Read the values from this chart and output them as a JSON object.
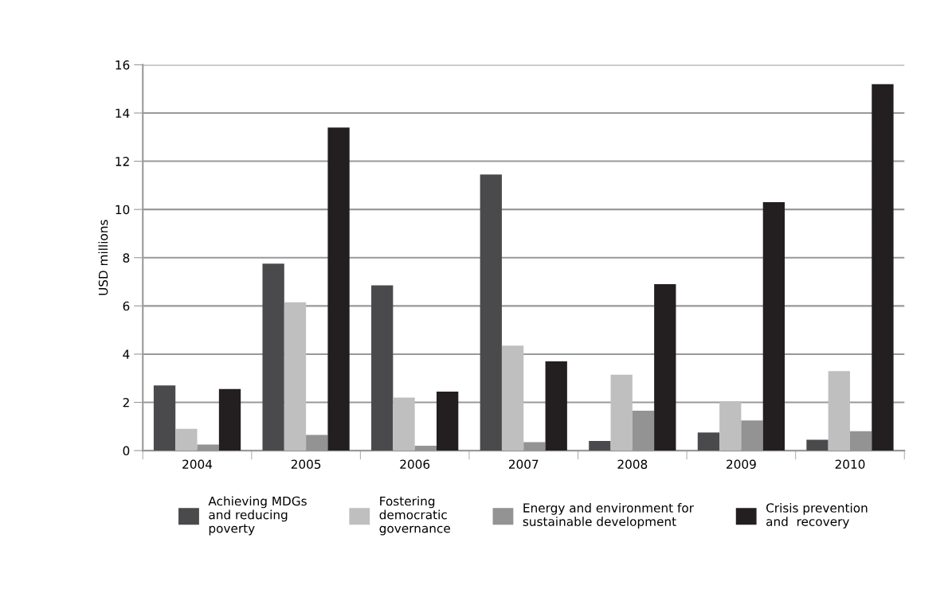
{
  "chart_data": {
    "type": "bar",
    "ylabel": "USD millions",
    "categories": [
      "2004",
      "2005",
      "2006",
      "2007",
      "2008",
      "2009",
      "2010"
    ],
    "series": [
      {
        "name": "Achieving MDGs\nand reducing\npoverty",
        "color": "#4a4a4c",
        "values": [
          2.7,
          7.75,
          6.85,
          11.45,
          0.4,
          0.75,
          0.45
        ]
      },
      {
        "name": "Fostering\ndemocratic\ngovernance",
        "color": "#bfbfbf",
        "values": [
          0.9,
          6.15,
          2.2,
          4.35,
          3.15,
          2.05,
          3.3
        ]
      },
      {
        "name": "Energy and environment for\nsustainable development",
        "color": "#939393",
        "values": [
          0.25,
          0.65,
          0.2,
          0.35,
          1.65,
          1.25,
          0.8
        ]
      },
      {
        "name": "Crisis prevention\nand  recovery",
        "color": "#231f20",
        "values": [
          2.55,
          13.4,
          2.45,
          3.7,
          6.9,
          10.3,
          15.2
        ]
      }
    ],
    "ylim": [
      0,
      16
    ],
    "yticks": [
      0,
      2,
      4,
      6,
      8,
      10,
      12,
      14,
      16
    ],
    "grid": "y",
    "legend": "bottom"
  }
}
